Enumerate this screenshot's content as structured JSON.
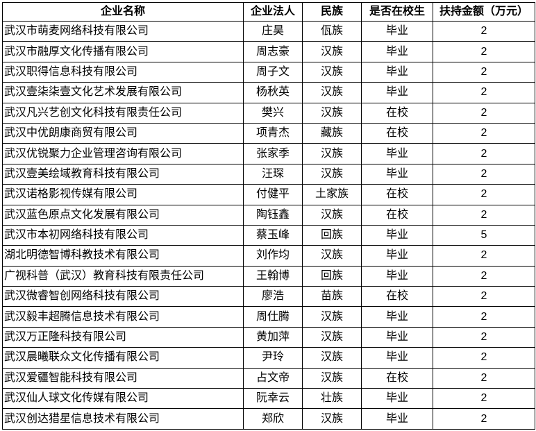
{
  "headers": [
    "企业名称",
    "企业法人",
    "民族",
    "是否在校生",
    "扶持金额（万元）"
  ],
  "rows": [
    [
      "武汉市萌麦网络科技有限公司",
      "庄昊",
      "佤族",
      "毕业",
      "2"
    ],
    [
      "武汉市融厚文化传播有限公司",
      "周志豪",
      "汉族",
      "毕业",
      "2"
    ],
    [
      "武汉职得信息科技有限公司",
      "周子文",
      "汉族",
      "毕业",
      "2"
    ],
    [
      "武汉壹柒柒壹文化艺术发展有限公司",
      "杨秋英",
      "汉族",
      "毕业",
      "2"
    ],
    [
      "武汉凡兴艺创文化科技有限责任公司",
      "樊兴",
      "汉族",
      "在校",
      "2"
    ],
    [
      "武汉中优朗康商贸有限公司",
      "项青杰",
      "藏族",
      "在校",
      "2"
    ],
    [
      "武汉优锐聚力企业管理咨询有限公司",
      "张家季",
      "汉族",
      "毕业",
      "2"
    ],
    [
      "武汉壹美绘域教育科技有限公司",
      "汪琛",
      "汉族",
      "毕业",
      "2"
    ],
    [
      "武汉诺格影视传媒有限公司",
      "付健平",
      "土家族",
      "在校",
      "2"
    ],
    [
      "武汉蓝色原点文化发展有限公司",
      "陶钰鑫",
      "汉族",
      "在校",
      "2"
    ],
    [
      "武汉市本初网络科技有限公司",
      "蔡玉峰",
      "回族",
      "毕业",
      "5"
    ],
    [
      "湖北明德智博科教技术有限公司",
      "刘作均",
      "汉族",
      "毕业",
      "2"
    ],
    [
      "广视科普（武汉）教育科技有限责任公司",
      "王翰博",
      "回族",
      "毕业",
      "2"
    ],
    [
      "武汉微睿智创网络科技有限公司",
      "廖浩",
      "苗族",
      "在校",
      "2"
    ],
    [
      "武汉毅丰超腾信息技术有限公司",
      "周仕腾",
      "汉族",
      "毕业",
      "2"
    ],
    [
      "武汉万正隆科技有限公司",
      "黄加萍",
      "汉族",
      "毕业",
      "2"
    ],
    [
      "武汉晨曦联众文化传播有限公司",
      "尹玲",
      "汉族",
      "毕业",
      "2"
    ],
    [
      "武汉爱疆智能科技有限公司",
      "占文帝",
      "汉族",
      "在校",
      "2"
    ],
    [
      "武汉仙人球文化传媒有限公司",
      "阮幸云",
      "壮族",
      "毕业",
      "2"
    ],
    [
      "武汉创达猎星信息技术有限公司",
      "郑欣",
      "汉族",
      "毕业",
      "2"
    ]
  ]
}
